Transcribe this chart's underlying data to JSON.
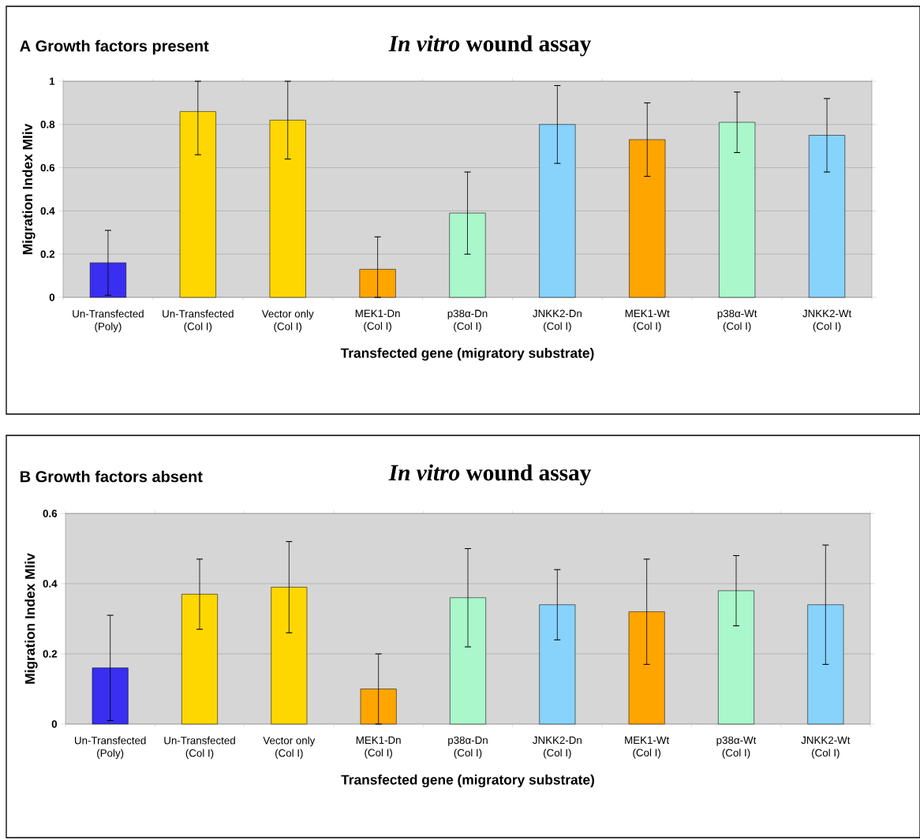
{
  "chart_data": [
    {
      "type": "bar",
      "title": "*In vitro* wound assay",
      "subtitle": "**A**  Growth factors present",
      "xlabel": "Transfected gene (migratory substrate)",
      "ylabel": "Migration Index MIiv",
      "categories": [
        "Un-Transfected\n(Poly)",
        "Un-Transfected\n(Col I)",
        "Vector only\n(Col I)",
        "MEK1-Dn\n(Col I)",
        "p38α-Dn\n(Col I)",
        "JNKK2-Dn\n(Col I)",
        "MEK1-Wt\n(Col I)",
        "p38α-Wt\n(Col I)",
        "JNKK2-Wt\n(Col I)"
      ],
      "values": [
        0.16,
        0.86,
        0.82,
        0.13,
        0.39,
        0.8,
        0.73,
        0.81,
        0.75
      ],
      "colors": [
        "#3a2ef0",
        "#ffd700",
        "#ffd700",
        "#ffa500",
        "#aaf7cc",
        "#87d3fc",
        "#ffa500",
        "#aaf7cc",
        "#87d3fc"
      ],
      "errors": [
        0.15,
        [
          0.66,
          1.0
        ],
        0.18,
        [
          0,
          0.28
        ],
        0.19,
        0.18,
        0.17,
        0.14,
        0.17
      ],
      "ylim": [
        0,
        1
      ],
      "yticks": [
        0,
        0.2,
        0.4,
        0.6,
        0.8,
        1
      ],
      "grid": "y"
    },
    {
      "type": "bar",
      "title": "*In vitro* wound assay",
      "subtitle": "**B**  Growth factors absent",
      "xlabel": "Transfected gene (migratory substrate)",
      "ylabel": "Migration Index MIiv",
      "categories": [
        "Un-Transfected\n(Poly)",
        "Un-Transfected\n(Col I)",
        "Vector only\n(Col I)",
        "MEK1-Dn\n(Col I)",
        "p38α-Dn\n(Col I)",
        "JNKK2-Dn\n(Col I)",
        "MEK1-Wt\n(Col I)",
        "p38α-Wt\n(Col I)",
        "JNKK2-Wt\n(Col I)"
      ],
      "values": [
        0.16,
        0.37,
        0.39,
        0.1,
        0.36,
        0.34,
        0.32,
        0.38,
        0.34
      ],
      "colors": [
        "#3a2ef0",
        "#ffd700",
        "#ffd700",
        "#ffa500",
        "#aaf7cc",
        "#87d3fc",
        "#ffa500",
        "#aaf7cc",
        "#87d3fc"
      ],
      "errors": [
        0.15,
        0.1,
        0.13,
        0.1,
        0.14,
        0.1,
        0.15,
        0.1,
        0.17
      ],
      "ylim": [
        0,
        0.6
      ],
      "yticks": [
        0,
        0.2,
        0.4,
        0.6
      ],
      "grid": "y"
    }
  ]
}
